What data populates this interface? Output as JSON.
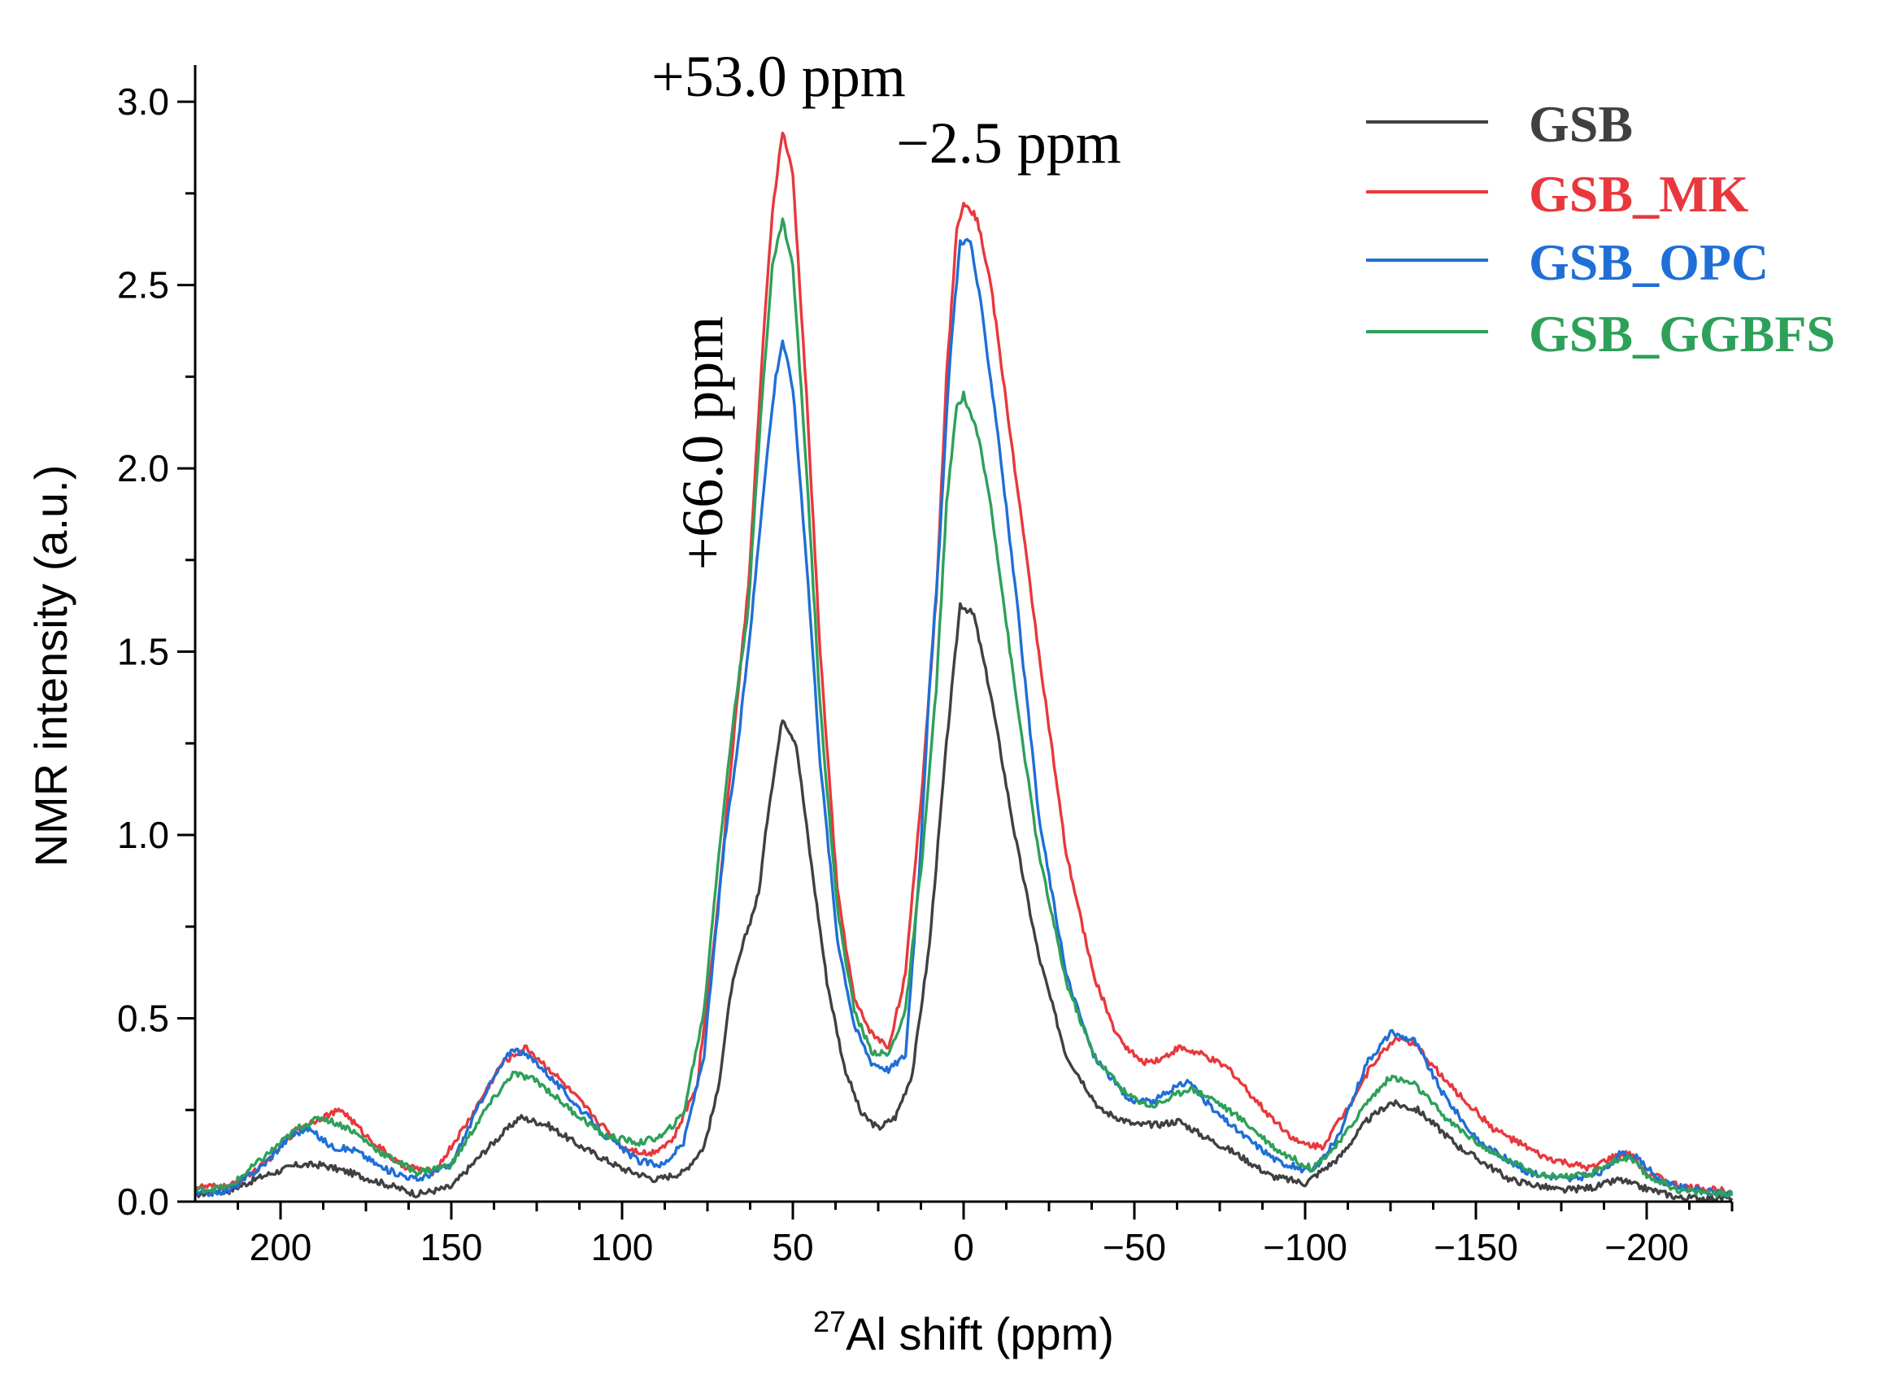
{
  "chart_data": {
    "type": "line",
    "xlabel": {
      "sup": "27",
      "main": "Al shift (ppm)"
    },
    "ylabel": "NMR intensity (a.u.)",
    "xlim": [
      225,
      -225
    ],
    "ylim": [
      0,
      3.1
    ],
    "x_ticks": [
      200,
      150,
      100,
      50,
      0,
      -50,
      -100,
      -150,
      -200
    ],
    "x_tick_labels": [
      "200",
      "150",
      "100",
      "50",
      "0",
      "−50",
      "−100",
      "−150",
      "−200"
    ],
    "y_ticks": [
      0.0,
      0.5,
      1.0,
      1.5,
      2.0,
      2.5,
      3.0
    ],
    "y_tick_labels": [
      "0.0",
      "0.5",
      "1.0",
      "1.5",
      "2.0",
      "2.5",
      "3.0"
    ],
    "legend_position": "top-right",
    "annotations": [
      {
        "text": "+53.0 ppm",
        "x": 53,
        "y": 3.0,
        "rotated": false
      },
      {
        "text": "−2.5 ppm",
        "x": -2.5,
        "y": 2.83,
        "rotated": false
      },
      {
        "text": "+66.0 ppm",
        "x": 66,
        "y": 2.2,
        "rotated": true
      }
    ],
    "series": [
      {
        "name": "GSB",
        "color": "#404040",
        "points": [
          [
            225,
            0.02
          ],
          [
            215,
            0.03
          ],
          [
            205,
            0.07
          ],
          [
            195,
            0.1
          ],
          [
            188,
            0.1
          ],
          [
            180,
            0.08
          ],
          [
            170,
            0.05
          ],
          [
            160,
            0.02
          ],
          [
            150,
            0.04
          ],
          [
            140,
            0.14
          ],
          [
            130,
            0.23
          ],
          [
            122,
            0.21
          ],
          [
            112,
            0.15
          ],
          [
            100,
            0.09
          ],
          [
            90,
            0.06
          ],
          [
            82,
            0.08
          ],
          [
            76,
            0.15
          ],
          [
            72,
            0.3
          ],
          [
            68,
            0.58
          ],
          [
            64,
            0.72
          ],
          [
            60,
            0.84
          ],
          [
            57,
            1.08
          ],
          [
            53,
            1.32
          ],
          [
            49,
            1.25
          ],
          [
            45,
            0.95
          ],
          [
            40,
            0.6
          ],
          [
            35,
            0.37
          ],
          [
            30,
            0.24
          ],
          [
            25,
            0.2
          ],
          [
            20,
            0.23
          ],
          [
            15,
            0.35
          ],
          [
            10,
            0.7
          ],
          [
            5,
            1.25
          ],
          [
            1,
            1.63
          ],
          [
            -3,
            1.6
          ],
          [
            -8,
            1.38
          ],
          [
            -15,
            1.0
          ],
          [
            -22,
            0.67
          ],
          [
            -30,
            0.4
          ],
          [
            -40,
            0.25
          ],
          [
            -50,
            0.21
          ],
          [
            -57,
            0.21
          ],
          [
            -63,
            0.22
          ],
          [
            -70,
            0.18
          ],
          [
            -80,
            0.13
          ],
          [
            -90,
            0.07
          ],
          [
            -100,
            0.05
          ],
          [
            -110,
            0.12
          ],
          [
            -118,
            0.22
          ],
          [
            -125,
            0.27
          ],
          [
            -133,
            0.25
          ],
          [
            -145,
            0.15
          ],
          [
            -160,
            0.06
          ],
          [
            -175,
            0.03
          ],
          [
            -185,
            0.04
          ],
          [
            -192,
            0.06
          ],
          [
            -198,
            0.04
          ],
          [
            -210,
            0.01
          ],
          [
            -225,
            0.01
          ]
        ]
      },
      {
        "name": "GSB_MK",
        "color": "#e8383d",
        "points": [
          [
            225,
            0.04
          ],
          [
            215,
            0.04
          ],
          [
            205,
            0.1
          ],
          [
            195,
            0.2
          ],
          [
            188,
            0.23
          ],
          [
            182,
            0.25
          ],
          [
            175,
            0.18
          ],
          [
            165,
            0.1
          ],
          [
            155,
            0.08
          ],
          [
            145,
            0.22
          ],
          [
            135,
            0.38
          ],
          [
            128,
            0.42
          ],
          [
            120,
            0.35
          ],
          [
            110,
            0.25
          ],
          [
            100,
            0.15
          ],
          [
            92,
            0.13
          ],
          [
            85,
            0.17
          ],
          [
            78,
            0.32
          ],
          [
            72,
            0.8
          ],
          [
            67,
            1.3
          ],
          [
            63,
            1.68
          ],
          [
            59,
            2.3
          ],
          [
            56,
            2.7
          ],
          [
            53,
            2.92
          ],
          [
            50,
            2.8
          ],
          [
            46,
            2.2
          ],
          [
            42,
            1.5
          ],
          [
            37,
            0.85
          ],
          [
            32,
            0.55
          ],
          [
            27,
            0.46
          ],
          [
            22,
            0.42
          ],
          [
            17,
            0.62
          ],
          [
            12,
            1.15
          ],
          [
            8,
            1.65
          ],
          [
            5,
            2.25
          ],
          [
            2,
            2.65
          ],
          [
            0,
            2.73
          ],
          [
            -4,
            2.68
          ],
          [
            -8,
            2.5
          ],
          [
            -15,
            2.0
          ],
          [
            -22,
            1.5
          ],
          [
            -30,
            0.95
          ],
          [
            -38,
            0.62
          ],
          [
            -45,
            0.45
          ],
          [
            -52,
            0.38
          ],
          [
            -58,
            0.39
          ],
          [
            -63,
            0.42
          ],
          [
            -70,
            0.4
          ],
          [
            -78,
            0.36
          ],
          [
            -88,
            0.25
          ],
          [
            -98,
            0.16
          ],
          [
            -105,
            0.15
          ],
          [
            -112,
            0.25
          ],
          [
            -120,
            0.38
          ],
          [
            -127,
            0.45
          ],
          [
            -133,
            0.42
          ],
          [
            -142,
            0.32
          ],
          [
            -155,
            0.2
          ],
          [
            -170,
            0.12
          ],
          [
            -183,
            0.09
          ],
          [
            -190,
            0.12
          ],
          [
            -195,
            0.13
          ],
          [
            -200,
            0.08
          ],
          [
            -210,
            0.04
          ],
          [
            -225,
            0.03
          ]
        ]
      },
      {
        "name": "GSB_OPC",
        "color": "#1f6fd6",
        "points": [
          [
            225,
            0.02
          ],
          [
            215,
            0.03
          ],
          [
            205,
            0.1
          ],
          [
            197,
            0.18
          ],
          [
            192,
            0.2
          ],
          [
            185,
            0.15
          ],
          [
            178,
            0.14
          ],
          [
            170,
            0.09
          ],
          [
            160,
            0.06
          ],
          [
            150,
            0.1
          ],
          [
            140,
            0.3
          ],
          [
            132,
            0.42
          ],
          [
            125,
            0.38
          ],
          [
            115,
            0.28
          ],
          [
            105,
            0.18
          ],
          [
            95,
            0.11
          ],
          [
            88,
            0.1
          ],
          [
            82,
            0.16
          ],
          [
            76,
            0.4
          ],
          [
            70,
            0.98
          ],
          [
            66,
            1.25
          ],
          [
            62,
            1.6
          ],
          [
            58,
            2.0
          ],
          [
            55,
            2.25
          ],
          [
            53,
            2.35
          ],
          [
            50,
            2.22
          ],
          [
            46,
            1.75
          ],
          [
            42,
            1.2
          ],
          [
            37,
            0.72
          ],
          [
            32,
            0.48
          ],
          [
            27,
            0.38
          ],
          [
            22,
            0.36
          ],
          [
            17,
            0.4
          ],
          [
            13,
            0.9
          ],
          [
            10,
            1.4
          ],
          [
            7,
            1.8
          ],
          [
            4,
            2.3
          ],
          [
            1,
            2.62
          ],
          [
            -2,
            2.62
          ],
          [
            -5,
            2.45
          ],
          [
            -10,
            2.1
          ],
          [
            -16,
            1.6
          ],
          [
            -22,
            1.05
          ],
          [
            -30,
            0.62
          ],
          [
            -38,
            0.4
          ],
          [
            -48,
            0.28
          ],
          [
            -55,
            0.27
          ],
          [
            -60,
            0.3
          ],
          [
            -66,
            0.33
          ],
          [
            -73,
            0.25
          ],
          [
            -82,
            0.18
          ],
          [
            -92,
            0.11
          ],
          [
            -102,
            0.08
          ],
          [
            -110,
            0.18
          ],
          [
            -118,
            0.38
          ],
          [
            -125,
            0.46
          ],
          [
            -132,
            0.44
          ],
          [
            -140,
            0.3
          ],
          [
            -150,
            0.17
          ],
          [
            -165,
            0.08
          ],
          [
            -178,
            0.06
          ],
          [
            -187,
            0.08
          ],
          [
            -192,
            0.13
          ],
          [
            -197,
            0.12
          ],
          [
            -205,
            0.05
          ],
          [
            -215,
            0.03
          ],
          [
            -225,
            0.02
          ]
        ]
      },
      {
        "name": "GSB_GGBFS",
        "color": "#2ea05a",
        "points": [
          [
            225,
            0.03
          ],
          [
            215,
            0.04
          ],
          [
            205,
            0.12
          ],
          [
            195,
            0.2
          ],
          [
            188,
            0.23
          ],
          [
            180,
            0.2
          ],
          [
            170,
            0.13
          ],
          [
            160,
            0.08
          ],
          [
            150,
            0.1
          ],
          [
            140,
            0.25
          ],
          [
            132,
            0.35
          ],
          [
            125,
            0.33
          ],
          [
            115,
            0.25
          ],
          [
            105,
            0.18
          ],
          [
            95,
            0.16
          ],
          [
            88,
            0.18
          ],
          [
            82,
            0.24
          ],
          [
            76,
            0.52
          ],
          [
            72,
            0.92
          ],
          [
            67,
            1.35
          ],
          [
            63,
            1.62
          ],
          [
            59,
            2.2
          ],
          [
            56,
            2.55
          ],
          [
            53,
            2.68
          ],
          [
            50,
            2.55
          ],
          [
            46,
            2.0
          ],
          [
            42,
            1.35
          ],
          [
            37,
            0.8
          ],
          [
            32,
            0.52
          ],
          [
            27,
            0.41
          ],
          [
            22,
            0.4
          ],
          [
            17,
            0.52
          ],
          [
            12,
            0.95
          ],
          [
            8,
            1.4
          ],
          [
            5,
            1.9
          ],
          [
            2,
            2.17
          ],
          [
            0,
            2.2
          ],
          [
            -4,
            2.1
          ],
          [
            -8,
            1.9
          ],
          [
            -15,
            1.4
          ],
          [
            -22,
            0.95
          ],
          [
            -30,
            0.6
          ],
          [
            -38,
            0.4
          ],
          [
            -48,
            0.29
          ],
          [
            -55,
            0.26
          ],
          [
            -60,
            0.28
          ],
          [
            -66,
            0.31
          ],
          [
            -73,
            0.28
          ],
          [
            -82,
            0.22
          ],
          [
            -92,
            0.14
          ],
          [
            -102,
            0.09
          ],
          [
            -110,
            0.16
          ],
          [
            -118,
            0.27
          ],
          [
            -125,
            0.34
          ],
          [
            -132,
            0.32
          ],
          [
            -142,
            0.22
          ],
          [
            -155,
            0.13
          ],
          [
            -170,
            0.07
          ],
          [
            -183,
            0.07
          ],
          [
            -190,
            0.11
          ],
          [
            -195,
            0.12
          ],
          [
            -200,
            0.07
          ],
          [
            -210,
            0.03
          ],
          [
            -225,
            0.02
          ]
        ]
      }
    ]
  }
}
